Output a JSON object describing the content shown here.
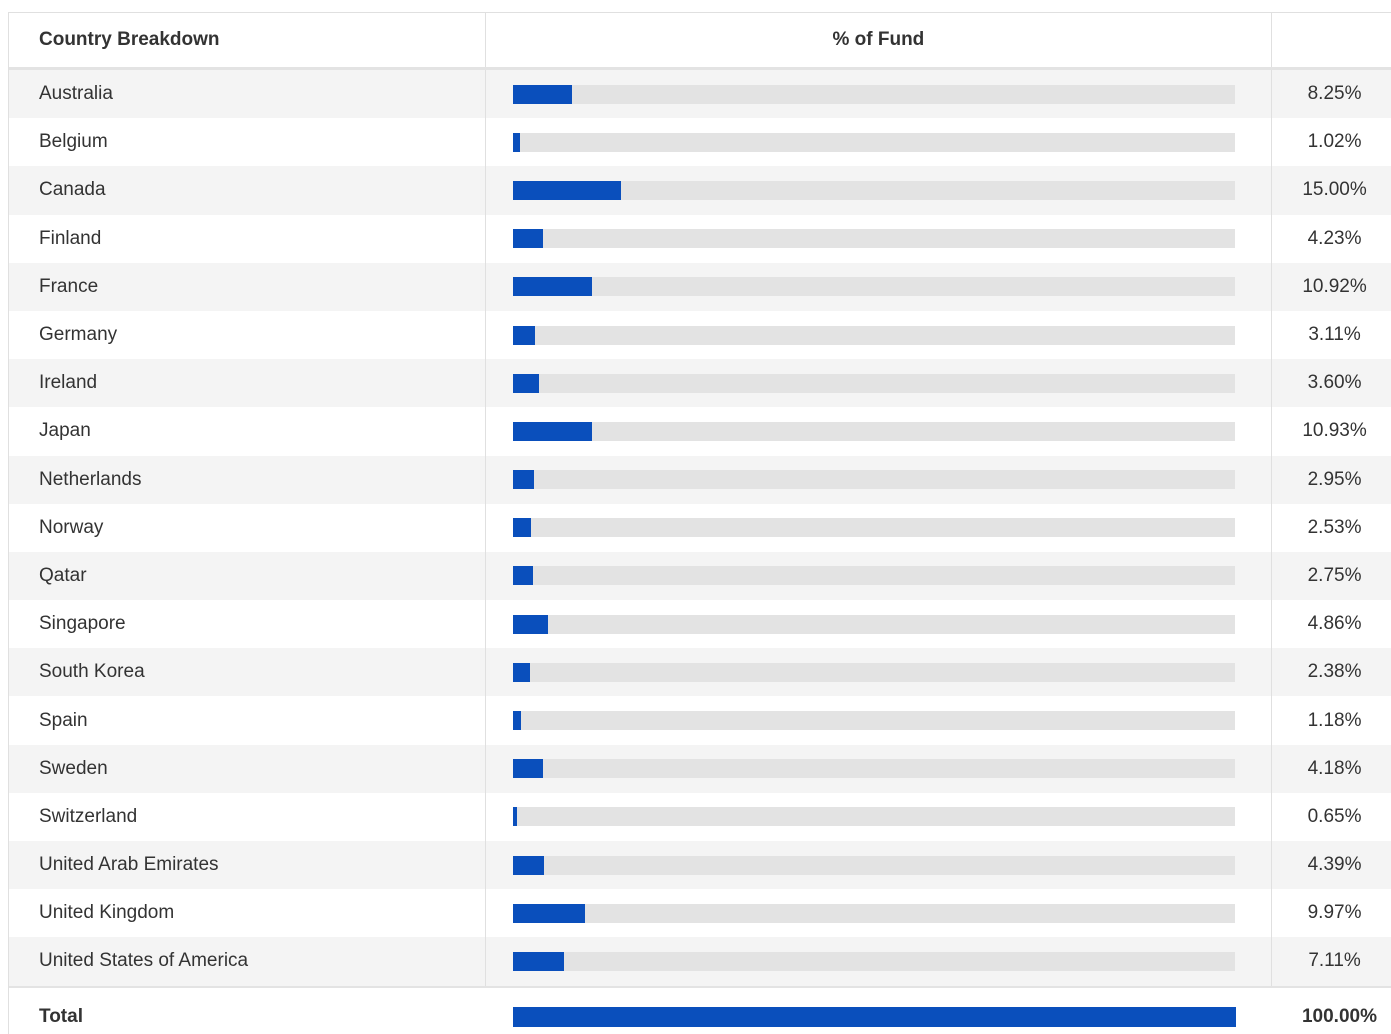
{
  "table": {
    "header": {
      "country_label": "Country Breakdown",
      "percent_label": "% of Fund",
      "value_label": ""
    },
    "rows": [
      {
        "country": "Australia",
        "value": "8.25%",
        "pct": 8.25
      },
      {
        "country": "Belgium",
        "value": "1.02%",
        "pct": 1.02
      },
      {
        "country": "Canada",
        "value": "15.00%",
        "pct": 15.0
      },
      {
        "country": "Finland",
        "value": "4.23%",
        "pct": 4.23
      },
      {
        "country": "France",
        "value": "10.92%",
        "pct": 10.92
      },
      {
        "country": "Germany",
        "value": "3.11%",
        "pct": 3.11
      },
      {
        "country": "Ireland",
        "value": "3.60%",
        "pct": 3.6
      },
      {
        "country": "Japan",
        "value": "10.93%",
        "pct": 10.93
      },
      {
        "country": "Netherlands",
        "value": "2.95%",
        "pct": 2.95
      },
      {
        "country": "Norway",
        "value": "2.53%",
        "pct": 2.53
      },
      {
        "country": "Qatar",
        "value": "2.75%",
        "pct": 2.75
      },
      {
        "country": "Singapore",
        "value": "4.86%",
        "pct": 4.86
      },
      {
        "country": "South Korea",
        "value": "2.38%",
        "pct": 2.38
      },
      {
        "country": "Spain",
        "value": "1.18%",
        "pct": 1.18
      },
      {
        "country": "Sweden",
        "value": "4.18%",
        "pct": 4.18
      },
      {
        "country": "Switzerland",
        "value": "0.65%",
        "pct": 0.65
      },
      {
        "country": "United Arab Emirates",
        "value": "4.39%",
        "pct": 4.39
      },
      {
        "country": "United Kingdom",
        "value": "9.97%",
        "pct": 9.97
      },
      {
        "country": "United States of America",
        "value": "7.11%",
        "pct": 7.11
      }
    ],
    "total": {
      "label": "Total",
      "value": "100.00%",
      "pct": 100
    }
  },
  "colors": {
    "bar_fill": "#0a4fbc",
    "bar_track": "#e3e3e3",
    "row_stripe": "#f4f4f4"
  }
}
